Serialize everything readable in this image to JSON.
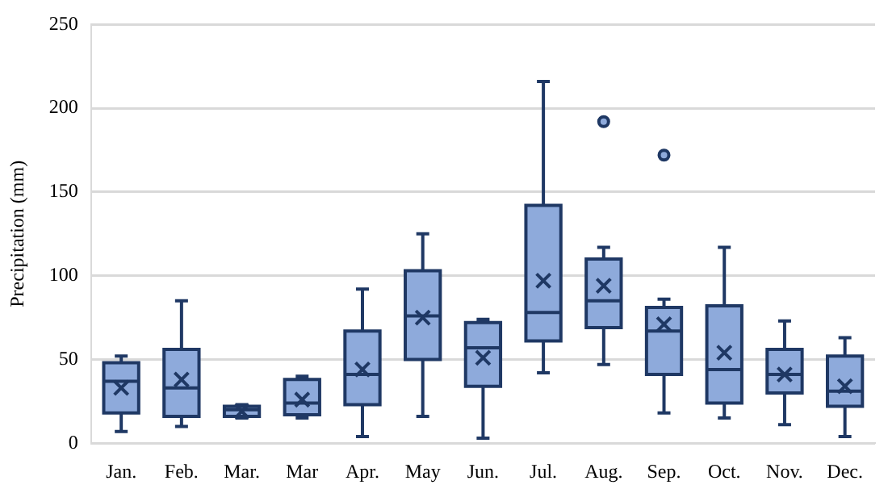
{
  "chart_data": {
    "type": "box",
    "ylabel": "Precipitation (mm)",
    "categories": [
      "Jan.",
      "Feb.",
      "Mar.",
      "Mar",
      "Apr.",
      "May",
      "Jun.",
      "Jul.",
      "Aug.",
      "Sep.",
      "Oct.",
      "Nov.",
      "Dec."
    ],
    "ylim": [
      0,
      250
    ],
    "yticks": [
      0,
      50,
      100,
      150,
      200,
      250
    ],
    "grid": "y",
    "legend": false,
    "color": "#8eaadb",
    "boxes": [
      {
        "low": 7,
        "q1": 18,
        "median": 37,
        "q3": 48,
        "high": 52,
        "mean": 33
      },
      {
        "low": 10,
        "q1": 16,
        "median": 33,
        "q3": 56,
        "high": 85,
        "mean": 38
      },
      {
        "low": 15,
        "q1": 16,
        "median": 20,
        "q3": 22,
        "high": 23,
        "mean": 19
      },
      {
        "low": 15,
        "q1": 17,
        "median": 24,
        "q3": 38,
        "high": 40,
        "mean": 26
      },
      {
        "low": 4,
        "q1": 23,
        "median": 41,
        "q3": 67,
        "high": 92,
        "mean": 44
      },
      {
        "low": 16,
        "q1": 50,
        "median": 76,
        "q3": 103,
        "high": 125,
        "mean": 75
      },
      {
        "low": 3,
        "q1": 34,
        "median": 57,
        "q3": 72,
        "high": 74,
        "mean": 51
      },
      {
        "low": 42,
        "q1": 61,
        "median": 78,
        "q3": 142,
        "high": 216,
        "mean": 97
      },
      {
        "low": 47,
        "q1": 69,
        "median": 85,
        "q3": 110,
        "high": 117,
        "mean": 94,
        "outliers": [
          192
        ]
      },
      {
        "low": 18,
        "q1": 41,
        "median": 67,
        "q3": 81,
        "high": 86,
        "mean": 71,
        "outliers": [
          172
        ]
      },
      {
        "low": 15,
        "q1": 24,
        "median": 44,
        "q3": 82,
        "high": 117,
        "mean": 54
      },
      {
        "low": 11,
        "q1": 30,
        "median": 41,
        "q3": 56,
        "high": 73,
        "mean": 41
      },
      {
        "low": 4,
        "q1": 22,
        "median": 31,
        "q3": 52,
        "high": 63,
        "mean": 34
      }
    ]
  }
}
